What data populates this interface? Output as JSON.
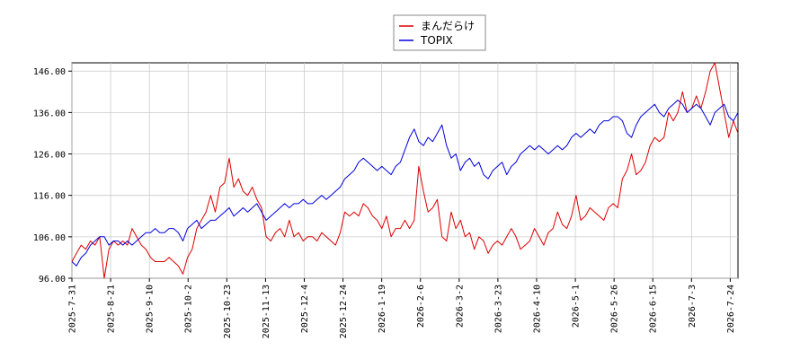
{
  "chart_data": {
    "type": "line",
    "title": "",
    "xlabel": "",
    "ylabel": "",
    "ylim": [
      96,
      148
    ],
    "yticks": [
      "96.00",
      "106.00",
      "116.00",
      "126.00",
      "136.00",
      "146.00"
    ],
    "x_tick_labels": [
      "2025-7-31",
      "2025-8-21",
      "2025-9-10",
      "2025-10-2",
      "2025-10-23",
      "2025-11-13",
      "2025-12-4",
      "2025-12-24",
      "2026-1-19",
      "2026-2-6",
      "2026-3-2",
      "2026-3-23",
      "2026-4-10",
      "2026-5-1",
      "2026-5-26",
      "2026-6-15",
      "2026-7-3",
      "2026-7-24"
    ],
    "grid": true,
    "legend_position": "top-center",
    "series": [
      {
        "name": "まんだらけ",
        "color": "#dd0000",
        "values": [
          100,
          102,
          104,
          103,
          105,
          104,
          106,
          96,
          103,
          105,
          104,
          105,
          104,
          108,
          106,
          104,
          103,
          101,
          100,
          100,
          100,
          101,
          100,
          99,
          97,
          101,
          103,
          108,
          110,
          112,
          116,
          112,
          118,
          119,
          125,
          118,
          120,
          117,
          116,
          118,
          115,
          113,
          106,
          105,
          107,
          108,
          106,
          110,
          106,
          107,
          105,
          106,
          106,
          105,
          107,
          106,
          105,
          104,
          107,
          112,
          111,
          112,
          111,
          114,
          113,
          111,
          110,
          108,
          111,
          106,
          108,
          108,
          110,
          108,
          110,
          123,
          117,
          112,
          113,
          115,
          106,
          105,
          112,
          108,
          110,
          106,
          107,
          103,
          106,
          105,
          102,
          104,
          105,
          104,
          106,
          108,
          106,
          103,
          104,
          105,
          108,
          106,
          104,
          107,
          108,
          112,
          109,
          108,
          111,
          116,
          110,
          111,
          113,
          112,
          111,
          110,
          113,
          114,
          113,
          120,
          122,
          126,
          121,
          122,
          124,
          128,
          130,
          129,
          130,
          136,
          134,
          136,
          141,
          136,
          137,
          140,
          137,
          141,
          146,
          148,
          142,
          136,
          130,
          134,
          131
        ]
      },
      {
        "name": "TOPIX",
        "color": "#0000dd",
        "values": [
          100,
          99,
          101,
          102,
          104,
          105,
          106,
          106,
          104,
          105,
          105,
          104,
          105,
          104,
          105,
          106,
          107,
          107,
          108,
          107,
          107,
          108,
          108,
          107,
          105,
          108,
          109,
          110,
          108,
          109,
          110,
          110,
          111,
          112,
          113,
          111,
          112,
          113,
          112,
          113,
          114,
          112,
          110,
          111,
          112,
          113,
          114,
          113,
          114,
          114,
          115,
          114,
          114,
          115,
          116,
          115,
          116,
          117,
          118,
          120,
          121,
          122,
          124,
          125,
          124,
          123,
          122,
          123,
          122,
          121,
          123,
          124,
          127,
          130,
          132,
          129,
          128,
          130,
          129,
          131,
          133,
          128,
          125,
          126,
          122,
          124,
          125,
          123,
          124,
          121,
          120,
          122,
          123,
          124,
          121,
          123,
          124,
          126,
          127,
          128,
          127,
          128,
          127,
          126,
          127,
          128,
          127,
          128,
          130,
          131,
          130,
          131,
          132,
          131,
          133,
          134,
          134,
          135,
          135,
          134,
          131,
          130,
          133,
          135,
          136,
          137,
          138,
          136,
          135,
          137,
          138,
          139,
          138,
          136,
          137,
          138,
          137,
          135,
          133,
          136,
          137,
          138,
          135,
          134,
          136
        ]
      }
    ]
  }
}
